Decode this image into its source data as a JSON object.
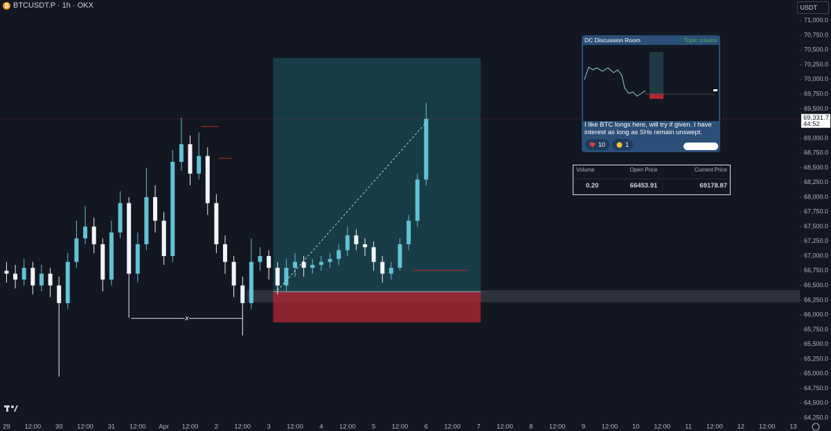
{
  "header": {
    "title": "BTCUSDT.P · 1h · OKX",
    "currency": "USDT"
  },
  "chart_data": {
    "type": "candlestick",
    "up_color": "#5fc3d4",
    "down_color": "#f2f4f7",
    "x": [
      0,
      4,
      8,
      12,
      16,
      20,
      24,
      28,
      32,
      36,
      40,
      44,
      48,
      52,
      56,
      60,
      64,
      68,
      72,
      76,
      80,
      84,
      88,
      92,
      96,
      100,
      104,
      108,
      112,
      116,
      120,
      124,
      128,
      132,
      136,
      140,
      144,
      148,
      152,
      156,
      160,
      164,
      168,
      172,
      176,
      180,
      184,
      188,
      192
    ],
    "open": [
      66750,
      66700,
      66600,
      66800,
      66500,
      66700,
      66500,
      66200,
      66900,
      67300,
      67500,
      67200,
      66600,
      67400,
      67900,
      66700,
      67200,
      68000,
      67600,
      67000,
      68600,
      68900,
      68400,
      68700,
      67900,
      67200,
      66900,
      66500,
      66200,
      66900,
      67000,
      66800,
      66500,
      66800,
      66900,
      66800,
      66850,
      66900,
      66950,
      67100,
      67350,
      67200,
      67150,
      66900,
      66700,
      66800,
      67200,
      67600,
      68300
    ],
    "high": [
      66900,
      66850,
      66950,
      66900,
      66850,
      66800,
      66650,
      67050,
      67600,
      67850,
      67650,
      67300,
      67600,
      68100,
      68000,
      67400,
      68500,
      68200,
      67750,
      68800,
      69350,
      69050,
      69100,
      68850,
      68050,
      67350,
      67000,
      66650,
      67300,
      67150,
      67100,
      66900,
      66950,
      67050,
      67000,
      66950,
      67000,
      67050,
      67200,
      67500,
      67450,
      67300,
      67250,
      67000,
      66900,
      67300,
      67700,
      68400,
      69600
    ],
    "low": [
      66550,
      66450,
      66500,
      66350,
      66400,
      66300,
      64950,
      66100,
      66800,
      67200,
      67050,
      66400,
      66500,
      67300,
      65950,
      66550,
      67100,
      67400,
      66850,
      66900,
      68450,
      68200,
      68300,
      67700,
      67050,
      66700,
      66300,
      65650,
      66100,
      66750,
      66600,
      66350,
      66400,
      66650,
      66650,
      66700,
      66750,
      66800,
      66850,
      67000,
      67100,
      67000,
      66750,
      66550,
      66600,
      66750,
      67100,
      67500,
      68200
    ],
    "close": [
      66700,
      66600,
      66800,
      66500,
      66700,
      66500,
      66200,
      66900,
      67300,
      67500,
      67200,
      66600,
      67400,
      67900,
      66700,
      67200,
      68000,
      67600,
      67000,
      68600,
      68900,
      68400,
      68700,
      67900,
      67200,
      66900,
      66500,
      66200,
      66900,
      67000,
      66800,
      66500,
      66800,
      66900,
      66800,
      66850,
      66900,
      66950,
      67100,
      67350,
      67200,
      67150,
      66900,
      66700,
      66800,
      67200,
      67600,
      68300,
      69330
    ],
    "xlim": [
      -3,
      363
    ],
    "xticks": [
      {
        "value": 0,
        "label": "29"
      },
      {
        "value": 12,
        "label": "12:00"
      },
      {
        "value": 24,
        "label": "30"
      },
      {
        "value": 36,
        "label": "12:00"
      },
      {
        "value": 48,
        "label": "31"
      },
      {
        "value": 60,
        "label": "12:00"
      },
      {
        "value": 72,
        "label": "Apr"
      },
      {
        "value": 84,
        "label": "12:00"
      },
      {
        "value": 96,
        "label": "2"
      },
      {
        "value": 108,
        "label": "12:00"
      },
      {
        "value": 120,
        "label": "3"
      },
      {
        "value": 132,
        "label": "12:00"
      },
      {
        "value": 144,
        "label": "4"
      },
      {
        "value": 156,
        "label": "12:00"
      },
      {
        "value": 168,
        "label": "5"
      },
      {
        "value": 180,
        "label": "12:00"
      },
      {
        "value": 192,
        "label": "6"
      },
      {
        "value": 204,
        "label": "12:00"
      },
      {
        "value": 216,
        "label": "7"
      },
      {
        "value": 228,
        "label": "12:00"
      },
      {
        "value": 240,
        "label": "8"
      },
      {
        "value": 252,
        "label": "12:00"
      },
      {
        "value": 264,
        "label": "9"
      },
      {
        "value": 276,
        "label": "12:00"
      },
      {
        "value": 288,
        "label": "10"
      },
      {
        "value": 300,
        "label": "12:00"
      },
      {
        "value": 312,
        "label": "11"
      },
      {
        "value": 324,
        "label": "12:00"
      },
      {
        "value": 336,
        "label": "12"
      },
      {
        "value": 348,
        "label": "12:00"
      },
      {
        "value": 360,
        "label": "13"
      }
    ],
    "ylim": [
      64180,
      71350
    ],
    "yticks": [
      {
        "value": 64250,
        "label": "64,250.0"
      },
      {
        "value": 64500,
        "label": "64,500.0"
      },
      {
        "value": 64750,
        "label": "64,750.0"
      },
      {
        "value": 65000,
        "label": "65,000.0"
      },
      {
        "value": 65250,
        "label": "65,250.0"
      },
      {
        "value": 65500,
        "label": "65,500.0"
      },
      {
        "value": 65750,
        "label": "65,750.0"
      },
      {
        "value": 66000,
        "label": "66,000.0"
      },
      {
        "value": 66250,
        "label": "66,250.0"
      },
      {
        "value": 66500,
        "label": "66,500.0"
      },
      {
        "value": 66750,
        "label": "66,750.0"
      },
      {
        "value": 67000,
        "label": "67,000.0"
      },
      {
        "value": 67250,
        "label": "67,250.0"
      },
      {
        "value": 67500,
        "label": "67,500.0"
      },
      {
        "value": 67750,
        "label": "67,750.0"
      },
      {
        "value": 68000,
        "label": "68,000.0"
      },
      {
        "value": 68250,
        "label": "68,250.0"
      },
      {
        "value": 68500,
        "label": "68,500.0"
      },
      {
        "value": 68750,
        "label": "68,750.0"
      },
      {
        "value": 69000,
        "label": "69,000.0"
      },
      {
        "value": 69250,
        "label": "69,250.0"
      },
      {
        "value": 69500,
        "label": "69,500.0"
      },
      {
        "value": 69750,
        "label": "69,750.0"
      },
      {
        "value": 70000,
        "label": "70,000.0"
      },
      {
        "value": 70250,
        "label": "70,250.0"
      },
      {
        "value": 70500,
        "label": "70,500.0"
      },
      {
        "value": 70750,
        "label": "70,750.0"
      },
      {
        "value": 71000,
        "label": "71,000.0"
      }
    ],
    "grid": false,
    "current_price": {
      "value": 69331.7,
      "label": "69,331.7"
    },
    "countdown": "44:52",
    "position": {
      "x_start": 122,
      "x_end": 217,
      "target": 70365,
      "entry": 66392,
      "stop": 65873
    },
    "zone": {
      "x_start": 110,
      "low": 66215,
      "high": 66420
    },
    "trend_line": {
      "x": [
        124,
        192
      ],
      "y": [
        66415,
        69270
      ]
    },
    "level_lines": [
      {
        "x": [
          89,
          97
        ],
        "y": 69200
      },
      {
        "x": [
          97,
          103
        ],
        "y": 68660
      },
      {
        "x": [
          186,
          211
        ],
        "y": 66755
      }
    ],
    "range_marker": {
      "x": [
        57,
        108
      ],
      "y": 65940,
      "label": "x"
    }
  },
  "discussion": {
    "title": "DC Discussion Room",
    "badge": "Topic creator",
    "message": "I like BTC longs here, will try if given. I have interest as long as SHs remain unswept.",
    "reactions": [
      "10",
      "1"
    ]
  },
  "table": {
    "columns": [
      "Volume",
      "Open Price",
      "Current Price"
    ],
    "rows": [
      [
        "0.20",
        "66453.91",
        "69178.87"
      ]
    ]
  }
}
